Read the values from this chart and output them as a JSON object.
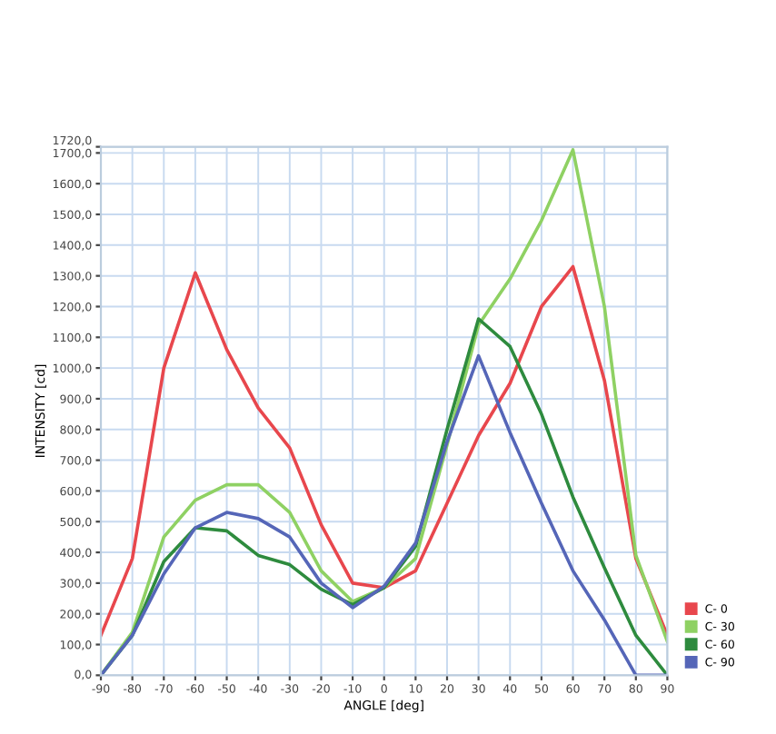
{
  "chart_data": {
    "type": "line",
    "xlabel": "ANGLE [deg]",
    "ylabel": "INTENSITY [cd]",
    "x": [
      -90,
      -80,
      -70,
      -60,
      -50,
      -40,
      -30,
      -20,
      -10,
      0,
      10,
      20,
      30,
      40,
      50,
      60,
      70,
      80,
      90
    ],
    "series": [
      {
        "name": "C- 0",
        "color": "#e8474d",
        "values": [
          130,
          380,
          1000,
          1310,
          1060,
          870,
          740,
          490,
          300,
          285,
          340,
          560,
          780,
          950,
          1200,
          1330,
          960,
          380,
          130
        ]
      },
      {
        "name": "C- 30",
        "color": "#8fd163",
        "values": [
          0,
          140,
          450,
          570,
          620,
          620,
          530,
          340,
          240,
          285,
          380,
          750,
          1140,
          1290,
          1480,
          1710,
          1200,
          390,
          110
        ]
      },
      {
        "name": "C- 60",
        "color": "#2e8b3e",
        "values": [
          0,
          130,
          370,
          480,
          470,
          390,
          360,
          280,
          230,
          285,
          420,
          800,
          1160,
          1070,
          850,
          580,
          350,
          130,
          0
        ]
      },
      {
        "name": "C- 90",
        "color": "#5566b8",
        "values": [
          0,
          130,
          330,
          480,
          530,
          510,
          450,
          300,
          220,
          290,
          430,
          760,
          1040,
          790,
          560,
          340,
          180,
          0,
          0
        ]
      }
    ],
    "xlim": [
      -90,
      90
    ],
    "xticks": [
      -90,
      -80,
      -70,
      -60,
      -50,
      -40,
      -30,
      -20,
      -10,
      0,
      10,
      20,
      30,
      40,
      50,
      60,
      70,
      80,
      90
    ],
    "ylim": [
      0,
      1720
    ],
    "yticks": [
      {
        "value": 0,
        "label": "0,0"
      },
      {
        "value": 100,
        "label": "100,0"
      },
      {
        "value": 200,
        "label": "200,0"
      },
      {
        "value": 300,
        "label": "300,0"
      },
      {
        "value": 400,
        "label": "400,0"
      },
      {
        "value": 500,
        "label": "500,0"
      },
      {
        "value": 600,
        "label": "600,0"
      },
      {
        "value": 700,
        "label": "700,0"
      },
      {
        "value": 800,
        "label": "800,0"
      },
      {
        "value": 900,
        "label": "900,0"
      },
      {
        "value": 1000,
        "label": "1000,0"
      },
      {
        "value": 1100,
        "label": "1100,0"
      },
      {
        "value": 1200,
        "label": "1200,0"
      },
      {
        "value": 1300,
        "label": "1300,0"
      },
      {
        "value": 1400,
        "label": "1400,0"
      },
      {
        "value": 1500,
        "label": "1500,0"
      },
      {
        "value": 1600,
        "label": "1600,0"
      },
      {
        "value": 1700,
        "label": "1700,0"
      },
      {
        "value": 1720,
        "label": "1720,0"
      }
    ],
    "grid": true,
    "legend": "bottom right",
    "marker": "none",
    "line_style": "solid"
  }
}
